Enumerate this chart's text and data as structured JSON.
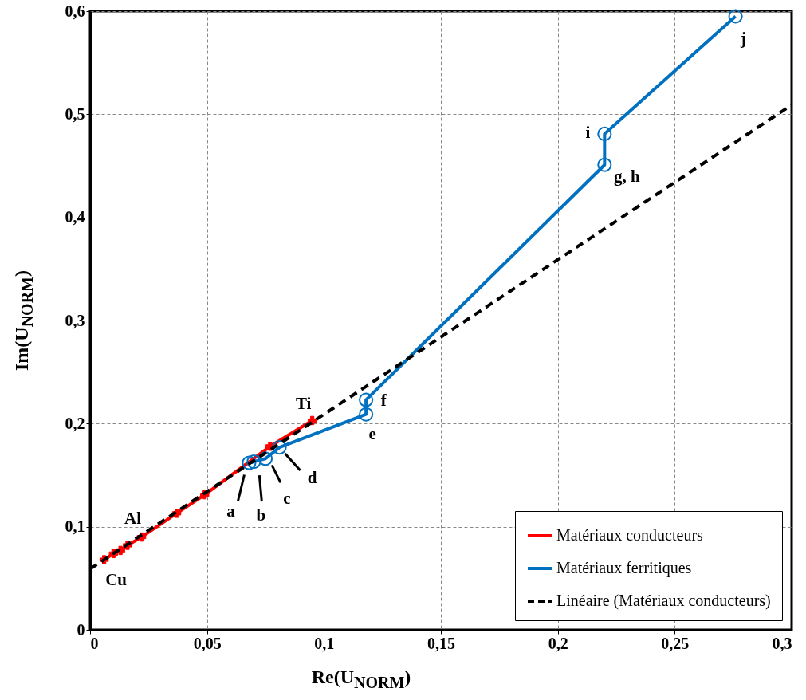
{
  "chart_data": {
    "type": "line",
    "xlabel": "Re(U$_{NORM}$)",
    "ylabel": "Im(U$_{NORM}$)",
    "xlim": [
      0,
      0.3
    ],
    "ylim": [
      0,
      0.6
    ],
    "xticks": [
      0,
      {
        "value": 0.05,
        "label": "0,05"
      },
      {
        "value": 0.1,
        "label": "0,1"
      },
      {
        "value": 0.15,
        "label": "0,15"
      },
      {
        "value": 0.2,
        "label": "0,2"
      },
      {
        "value": 0.25,
        "label": "0,25"
      },
      {
        "value": 0.3,
        "label": "0,3"
      }
    ],
    "yticks": [
      0,
      {
        "value": 0.1,
        "label": "0,1"
      },
      {
        "value": 0.2,
        "label": "0,2"
      },
      {
        "value": 0.3,
        "label": "0,3"
      },
      {
        "value": 0.4,
        "label": "0,4"
      },
      {
        "value": 0.5,
        "label": "0,5"
      },
      {
        "value": 0.6,
        "label": "0,6"
      }
    ],
    "grid": true,
    "legend": "bottom right",
    "series": [
      {
        "name": "Matériaux conducteurs",
        "color": "#ff0000",
        "marker": "cross",
        "x": [
          0.006,
          0.01,
          0.013,
          0.016,
          0.022,
          0.037,
          0.049,
          0.077,
          0.095
        ],
        "values": [
          0.068,
          0.074,
          0.077,
          0.082,
          0.09,
          0.113,
          0.131,
          0.178,
          0.203
        ]
      },
      {
        "name": "Matériaux ferritiques",
        "color": "#0070c0",
        "marker": "circle",
        "x": [
          0.068,
          0.07,
          0.075,
          0.081,
          0.118,
          0.118,
          0.22,
          0.22,
          0.276
        ],
        "values": [
          0.162,
          0.163,
          0.166,
          0.177,
          0.209,
          0.223,
          0.451,
          0.481,
          0.595
        ]
      },
      {
        "name": "Linéaire (Matériaux conducteurs)",
        "color": "#000000",
        "marker": "none",
        "line_style": "dashed",
        "x": [
          0,
          0.3
        ],
        "values": [
          0.059,
          0.509
        ]
      }
    ],
    "annotations": [
      {
        "text": "Cu",
        "x": 0.006,
        "y": 0.068
      },
      {
        "text": "Al",
        "x": 0.022,
        "y": 0.09
      },
      {
        "text": "Ti",
        "x": 0.095,
        "y": 0.203
      },
      {
        "text": "a",
        "x": 0.068,
        "y": 0.162
      },
      {
        "text": "b",
        "x": 0.07,
        "y": 0.163
      },
      {
        "text": "c",
        "x": 0.075,
        "y": 0.166
      },
      {
        "text": "d",
        "x": 0.081,
        "y": 0.177
      },
      {
        "text": "e",
        "x": 0.118,
        "y": 0.209
      },
      {
        "text": "f",
        "x": 0.118,
        "y": 0.223
      },
      {
        "text": "g, h",
        "x": 0.22,
        "y": 0.451
      },
      {
        "text": "i",
        "x": 0.22,
        "y": 0.481
      },
      {
        "text": "j",
        "x": 0.276,
        "y": 0.595
      }
    ]
  }
}
